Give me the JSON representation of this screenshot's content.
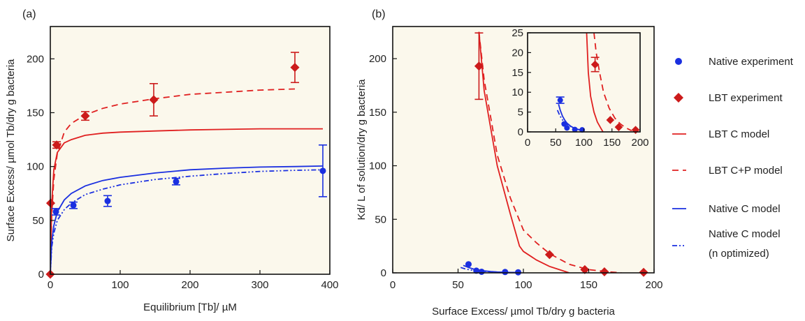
{
  "chart_data": [
    {
      "panel_label": "(a)",
      "type": "scatter",
      "xlabel": "Equilibrium [Tb]/ µM",
      "ylabel": "Surface Excess/ µmol Tb/dry g bacteria",
      "xlim": [
        0,
        400
      ],
      "ylim": [
        0,
        230
      ],
      "xticks": [
        0,
        100,
        200,
        300,
        400
      ],
      "yticks": [
        0,
        50,
        100,
        150,
        200
      ],
      "series": [
        {
          "name": "Native experiment",
          "kind": "points",
          "marker": "circle",
          "color": "#1a2fe0",
          "points": [
            {
              "x": 0,
              "y": 0
            },
            {
              "x": 8,
              "y": 58,
              "err": 3
            },
            {
              "x": 33,
              "y": 64,
              "err": 3
            },
            {
              "x": 82,
              "y": 68,
              "err": 5
            },
            {
              "x": 180,
              "y": 86,
              "err": 3
            },
            {
              "x": 390,
              "y": 96,
              "err": 24
            }
          ]
        },
        {
          "name": "LBT experiment",
          "kind": "points",
          "marker": "diamond",
          "color": "#cc1b1b",
          "points": [
            {
              "x": 0,
              "y": 0
            },
            {
              "x": 0.5,
              "y": 66
            },
            {
              "x": 9,
              "y": 120,
              "err": 3
            },
            {
              "x": 50,
              "y": 147,
              "err": 4
            },
            {
              "x": 148,
              "y": 162,
              "err": 15
            },
            {
              "x": 350,
              "y": 192,
              "err": 14
            }
          ]
        },
        {
          "name": "LBT C model",
          "kind": "line",
          "dash": "solid",
          "color": "#e02020",
          "x": [
            0,
            2,
            5,
            10,
            20,
            30,
            50,
            75,
            100,
            150,
            200,
            250,
            300,
            350,
            390
          ],
          "y": [
            0,
            65,
            97,
            113,
            122,
            125,
            129,
            131,
            132,
            133,
            134,
            134.5,
            135,
            135,
            135
          ]
        },
        {
          "name": "LBT C+P model",
          "kind": "line",
          "dash": "dash",
          "color": "#e02020",
          "x": [
            0,
            2,
            5,
            10,
            20,
            30,
            50,
            75,
            100,
            150,
            200,
            250,
            300,
            350
          ],
          "y": [
            0,
            55,
            88,
            112,
            132,
            140,
            148,
            154,
            158,
            163,
            167,
            169,
            171,
            172
          ]
        },
        {
          "name": "Native C model",
          "kind": "line",
          "dash": "solid",
          "color": "#1a2fe0",
          "x": [
            0,
            2,
            5,
            10,
            20,
            30,
            50,
            75,
            100,
            150,
            200,
            250,
            300,
            350,
            390
          ],
          "y": [
            0,
            30,
            45,
            58,
            69,
            75,
            82,
            87,
            90,
            94,
            97,
            98.5,
            99.5,
            100,
            100.5
          ]
        },
        {
          "name": "Native C model (n optimized)",
          "kind": "line",
          "dash": "dashdotdot",
          "color": "#1a2fe0",
          "x": [
            0,
            2,
            5,
            10,
            20,
            30,
            50,
            75,
            100,
            150,
            200,
            250,
            300,
            350,
            390
          ],
          "y": [
            0,
            25,
            38,
            50,
            60,
            66,
            74,
            79,
            83,
            88,
            91,
            93.5,
            95.5,
            96.5,
            97
          ]
        }
      ]
    },
    {
      "panel_label": "(b)",
      "type": "scatter",
      "xlabel": "Surface Excess/ µmol Tb/dry g bacteria",
      "ylabel": "Kd/ L of solution/dry g bacteria",
      "xlim": [
        0,
        200
      ],
      "ylim": [
        0,
        230
      ],
      "xticks": [
        0,
        50,
        100,
        150,
        200
      ],
      "yticks": [
        0,
        50,
        100,
        150,
        200
      ],
      "series": [
        {
          "name": "Native experiment",
          "kind": "points",
          "marker": "circle",
          "color": "#1a2fe0",
          "points": [
            {
              "x": 58,
              "y": 8
            },
            {
              "x": 64,
              "y": 2
            },
            {
              "x": 68,
              "y": 1
            },
            {
              "x": 86,
              "y": 0.8
            },
            {
              "x": 96,
              "y": 0.5
            }
          ]
        },
        {
          "name": "LBT experiment",
          "kind": "points",
          "marker": "diamond",
          "color": "#cc1b1b",
          "points": [
            {
              "x": 66,
              "y": 193,
              "err": 31
            },
            {
              "x": 120,
              "y": 17
            },
            {
              "x": 147,
              "y": 3
            },
            {
              "x": 162,
              "y": 1
            },
            {
              "x": 192,
              "y": 0.5
            }
          ]
        },
        {
          "name": "LBT C model",
          "kind": "line",
          "dash": "solid",
          "color": "#e02020",
          "x": [
            66,
            70,
            80,
            90,
            97,
            100,
            110,
            120,
            130,
            135
          ],
          "y": [
            225,
            170,
            100,
            55,
            25,
            20,
            12,
            6,
            2,
            0
          ]
        },
        {
          "name": "LBT C+P model",
          "kind": "line",
          "dash": "dash",
          "color": "#e02020",
          "x": [
            66,
            70,
            80,
            90,
            100,
            110,
            120,
            135,
            150,
            165,
            175
          ],
          "y": [
            225,
            180,
            110,
            70,
            40,
            28,
            18,
            8,
            3,
            1,
            0
          ]
        },
        {
          "name": "Native C model",
          "kind": "line",
          "dash": "solid",
          "color": "#1a2fe0",
          "x": [
            54,
            58,
            62,
            66,
            70,
            75,
            80,
            86,
            90,
            96
          ],
          "y": [
            7,
            5,
            3.5,
            2.5,
            1.8,
            1.2,
            0.8,
            0.5,
            0.4,
            0.3
          ]
        },
        {
          "name": "Native C model (n optimized)",
          "kind": "line",
          "dash": "dashdotdot",
          "color": "#1a2fe0",
          "x": [
            52,
            56,
            60,
            66,
            70,
            76,
            82,
            90,
            96
          ],
          "y": [
            5,
            3.5,
            2.6,
            1.8,
            1.3,
            0.9,
            0.6,
            0.4,
            0.3
          ]
        }
      ],
      "inset": {
        "xlim": [
          0,
          200
        ],
        "ylim": [
          0,
          25
        ],
        "xticks": [
          0,
          50,
          100,
          150,
          200
        ],
        "yticks": [
          0,
          5,
          10,
          15,
          20,
          25
        ],
        "series": [
          {
            "name": "Native experiment",
            "kind": "points",
            "marker": "circle",
            "color": "#1a2fe0",
            "points": [
              {
                "x": 58,
                "y": 8,
                "err": 0.8
              },
              {
                "x": 65,
                "y": 2
              },
              {
                "x": 70,
                "y": 1
              },
              {
                "x": 84,
                "y": 0.6
              },
              {
                "x": 97,
                "y": 0.5
              }
            ]
          },
          {
            "name": "LBT experiment",
            "kind": "points",
            "marker": "diamond",
            "color": "#cc1b1b",
            "points": [
              {
                "x": 120,
                "y": 17,
                "err": 1.8
              },
              {
                "x": 147,
                "y": 3
              },
              {
                "x": 162,
                "y": 1.2
              },
              {
                "x": 192,
                "y": 0.5
              }
            ]
          },
          {
            "name": "LBT C model",
            "kind": "line",
            "dash": "solid",
            "color": "#e02020",
            "x": [
              105,
              108,
              112,
              118,
              124,
              130,
              134
            ],
            "y": [
              25,
              15,
              9,
              5,
              2.5,
              1,
              0
            ]
          },
          {
            "name": "LBT C+P model",
            "kind": "line",
            "dash": "dash",
            "color": "#e02020",
            "x": [
              118,
              122,
              128,
              135,
              145,
              155,
              165,
              175,
              185
            ],
            "y": [
              25,
              20,
              15,
              10,
              6,
              3.5,
              2,
              1,
              0.3
            ]
          },
          {
            "name": "Native C model",
            "kind": "line",
            "dash": "solid",
            "color": "#1a2fe0",
            "x": [
              55,
              58,
              62,
              66,
              70,
              76,
              82,
              90,
              96
            ],
            "y": [
              7,
              5.5,
              4,
              3,
              2.2,
              1.5,
              1,
              0.6,
              0.4
            ]
          },
          {
            "name": "Native C model (n optimized)",
            "kind": "line",
            "dash": "dashdotdot",
            "color": "#1a2fe0",
            "x": [
              53,
              57,
              61,
              66,
              72,
              80,
              88,
              96
            ],
            "y": [
              5.5,
              4.2,
              3.2,
              2.4,
              1.7,
              1.1,
              0.7,
              0.4
            ]
          }
        ]
      }
    }
  ],
  "legend": [
    {
      "label": "Native experiment",
      "marker": "circle",
      "color": "#1a2fe0"
    },
    {
      "label": "LBT experiment",
      "marker": "diamond",
      "color": "#cc1b1b"
    },
    {
      "label": "LBT C model",
      "line": "solid",
      "color": "#e02020"
    },
    {
      "label": "LBT C+P model",
      "line": "dash",
      "color": "#e02020"
    },
    {
      "label": "Native C model",
      "line": "solid",
      "color": "#1a2fe0"
    },
    {
      "label": "Native C model",
      "label2": "(n optimized)",
      "line": "dashdotdot",
      "color": "#1a2fe0"
    }
  ]
}
